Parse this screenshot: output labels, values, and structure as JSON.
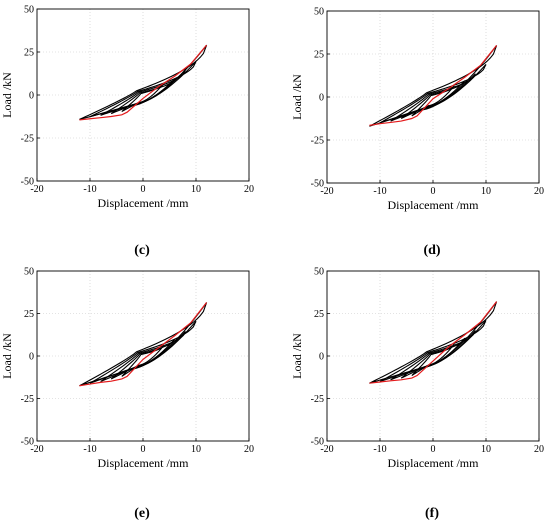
{
  "chart_data": [
    {
      "type": "line",
      "caption": "",
      "xlabel": "Displacement /mm",
      "ylabel": "Load /kN",
      "xlim": [
        -20,
        20
      ],
      "ylim": [
        -50,
        50
      ],
      "xticks": [
        -20,
        -10,
        0,
        10,
        20
      ],
      "yticks": [
        -50,
        -25,
        0,
        25,
        50
      ],
      "grid": "dotted",
      "series": [
        {
          "color": "#000000",
          "loops": [
            {
              "amp": 4,
              "pos": 7.1,
              "neg": -9.6
            },
            {
              "amp": 6,
              "pos": 9.5,
              "neg": -10.8
            },
            {
              "amp": 8,
              "pos": 14.5,
              "neg": -11.8
            },
            {
              "amp": 10,
              "pos": 19.5,
              "neg": -12.6
            },
            {
              "amp": 12,
              "pos": 29.0,
              "neg": -14.2
            }
          ]
        },
        {
          "color": "#e41a1c",
          "skeleton": {
            "x": [
              -12,
              -10,
              -8,
              -6,
              -4,
              -3,
              0,
              3,
              6,
              9,
              12
            ],
            "y": [
              -14.5,
              -13.8,
              -13.2,
              -12.5,
              -11.5,
              -10.0,
              -2.0,
              5.0,
              11.0,
              18.0,
              29.0
            ]
          }
        }
      ]
    },
    {
      "type": "line",
      "caption": "",
      "xlabel": "Displacement /mm",
      "ylabel": "Load /kN",
      "xlim": [
        -20,
        20
      ],
      "ylim": [
        -50,
        50
      ],
      "xticks": [
        -20,
        -10,
        0,
        10,
        20
      ],
      "yticks": [
        -50,
        -25,
        0,
        25,
        50
      ],
      "grid": "dotted",
      "series": [
        {
          "color": "#000000",
          "loops": [
            {
              "amp": 4,
              "pos": 6.5,
              "neg": -11.0
            },
            {
              "amp": 6,
              "pos": 9.5,
              "neg": -12.5
            },
            {
              "amp": 8,
              "pos": 13.5,
              "neg": -14.0
            },
            {
              "amp": 10,
              "pos": 19.0,
              "neg": -15.0
            },
            {
              "amp": 12,
              "pos": 30.0,
              "neg": -17.0
            }
          ]
        },
        {
          "color": "#e41a1c",
          "skeleton": {
            "x": [
              -12,
              -10,
              -8,
              -6,
              -4,
              -3,
              0,
              3,
              6,
              9,
              12
            ],
            "y": [
              -16.5,
              -15.5,
              -14.8,
              -14.0,
              -12.5,
              -11.0,
              -1.0,
              5.0,
              11.5,
              18.5,
              30.0
            ]
          }
        }
      ]
    },
    {
      "type": "line",
      "caption": "(c)",
      "xlabel": "Displacement /mm",
      "ylabel": "Load /kN",
      "xlim": [
        -20,
        20
      ],
      "ylim": [
        -50,
        50
      ],
      "xticks": [
        -20,
        -10,
        0,
        10,
        20
      ],
      "yticks": [
        -50,
        -25,
        0,
        25,
        50
      ],
      "grid": "dotted",
      "series": [
        {
          "color": "#000000",
          "loops": [
            {
              "amp": 4,
              "pos": 6.5,
              "neg": -12.0
            },
            {
              "amp": 6,
              "pos": 10.0,
              "neg": -13.5
            },
            {
              "amp": 8,
              "pos": 14.5,
              "neg": -15.0
            },
            {
              "amp": 10,
              "pos": 20.5,
              "neg": -16.0
            },
            {
              "amp": 12,
              "pos": 31.5,
              "neg": -17.5
            }
          ]
        },
        {
          "color": "#e41a1c",
          "skeleton": {
            "x": [
              -12,
              -10,
              -8,
              -6,
              -4,
              -3,
              0,
              3,
              6,
              9,
              12
            ],
            "y": [
              -17.5,
              -16.5,
              -15.5,
              -14.8,
              -13.5,
              -12.0,
              -2.0,
              5.0,
              12.0,
              19.5,
              31.5
            ]
          }
        }
      ]
    },
    {
      "type": "line",
      "caption": "(d)",
      "xlabel": "Displacement /mm",
      "ylabel": "Load /kN",
      "xlim": [
        -20,
        20
      ],
      "ylim": [
        -50,
        50
      ],
      "xticks": [
        -20,
        -10,
        0,
        10,
        20
      ],
      "yticks": [
        -50,
        -25,
        0,
        25,
        50
      ],
      "grid": "dotted",
      "series": [
        {
          "color": "#000000",
          "loops": [
            {
              "amp": 4,
              "pos": 7.0,
              "neg": -11.5
            },
            {
              "amp": 6,
              "pos": 10.5,
              "neg": -13.0
            },
            {
              "amp": 8,
              "pos": 15.0,
              "neg": -14.0
            },
            {
              "amp": 10,
              "pos": 21.0,
              "neg": -15.0
            },
            {
              "amp": 12,
              "pos": 32.0,
              "neg": -16.0
            }
          ]
        },
        {
          "color": "#e41a1c",
          "skeleton": {
            "x": [
              -12,
              -10,
              -8,
              -6,
              -4,
              -3,
              0,
              3,
              6,
              9,
              12
            ],
            "y": [
              -16.0,
              -15.3,
              -14.6,
              -14.0,
              -13.0,
              -11.5,
              -3.0,
              5.5,
              12.5,
              20.0,
              32.0
            ]
          }
        }
      ]
    }
  ]
}
